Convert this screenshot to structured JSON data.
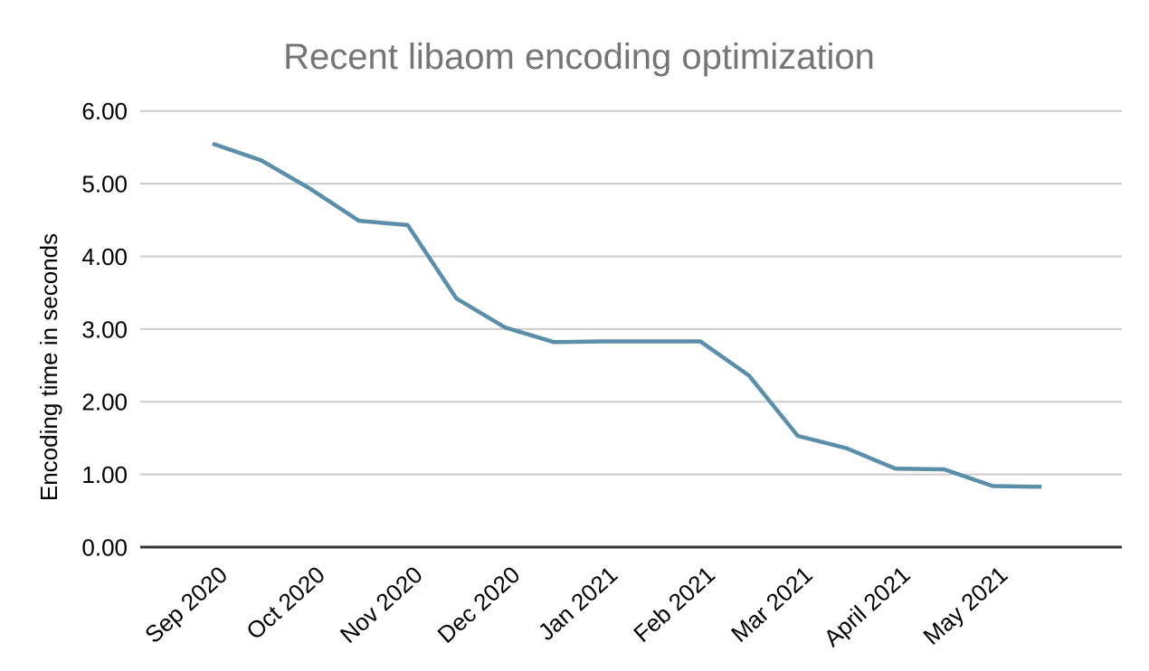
{
  "chart_data": {
    "type": "line",
    "title": "Recent libaom encoding optimization",
    "xlabel": "",
    "ylabel": "Encoding time in seconds",
    "categories": [
      "Sep 2020",
      "",
      "Oct 2020",
      "",
      "Nov 2020",
      "",
      "Dec 2020",
      "",
      "Jan 2021",
      "",
      "Feb 2021",
      "",
      "Mar 2021",
      "",
      "April 2021",
      "",
      "May 2021",
      ""
    ],
    "values": [
      5.55,
      5.32,
      4.93,
      4.49,
      4.43,
      3.42,
      3.02,
      2.82,
      2.83,
      2.83,
      2.83,
      2.36,
      1.53,
      1.36,
      1.08,
      1.07,
      0.84,
      0.83
    ],
    "ylim": [
      0,
      6
    ],
    "yticks": [
      {
        "value": 0,
        "label": "0.00"
      },
      {
        "value": 1,
        "label": "1.00"
      },
      {
        "value": 2,
        "label": "2.00"
      },
      {
        "value": 3,
        "label": "3.00"
      },
      {
        "value": 4,
        "label": "4.00"
      },
      {
        "value": 5,
        "label": "5.00"
      },
      {
        "value": 6,
        "label": "6.00"
      }
    ],
    "grid": true,
    "legend_position": "none",
    "colors": {
      "line": "#5b8fa9",
      "grid": "#cccccc",
      "axis_line": "#333333",
      "title_text": "#757575",
      "axis_text": "#000000",
      "background": "#ffffff"
    }
  }
}
